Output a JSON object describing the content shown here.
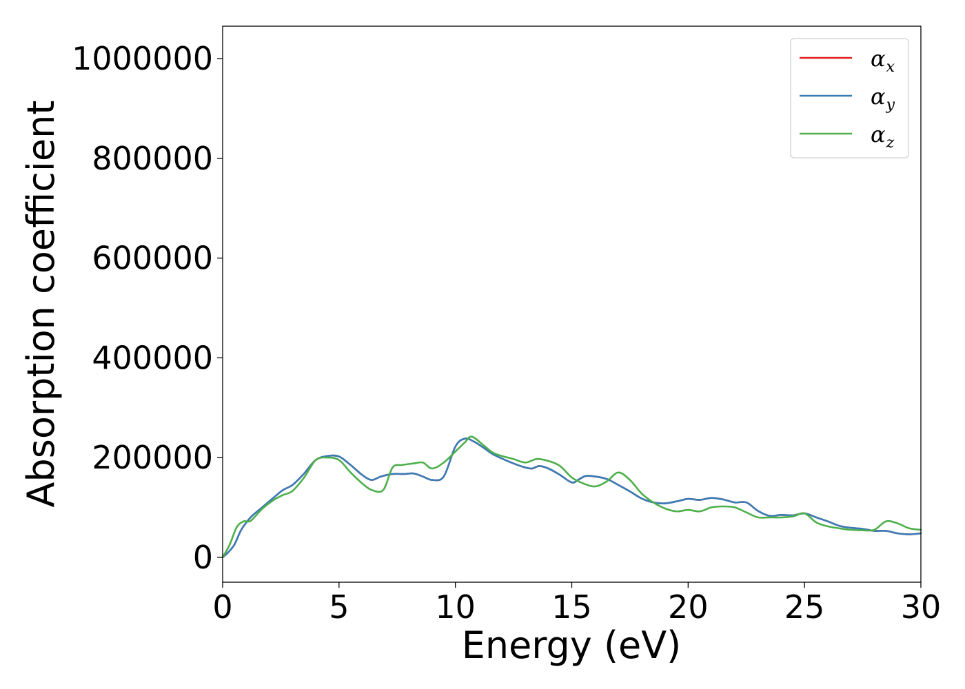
{
  "chart_data": {
    "type": "line",
    "xlabel": "Energy (eV)",
    "ylabel": "Absorption coefficient",
    "xlim": [
      0,
      30
    ],
    "ylim": [
      -50000,
      1065000
    ],
    "xticks": [
      0,
      5,
      10,
      15,
      20,
      25,
      30
    ],
    "xtick_labels": [
      "0",
      "5",
      "10",
      "15",
      "20",
      "25",
      "30"
    ],
    "yticks": [
      0,
      200000,
      400000,
      600000,
      800000,
      1000000
    ],
    "ytick_labels": [
      "0",
      "200000",
      "400000",
      "600000",
      "800000",
      "1000000"
    ],
    "grid": false,
    "legend_position": "top-right",
    "series": [
      {
        "name": "α",
        "subscript": "x",
        "color": "#e41a1c",
        "x": [
          0,
          0.2,
          0.5,
          0.8,
          1.2,
          1.7,
          2.2,
          2.6,
          3.0,
          3.5,
          4.0,
          4.5,
          5.0,
          5.5,
          6.0,
          6.4,
          6.8,
          7.3,
          7.8,
          8.2,
          8.6,
          9.0,
          9.5,
          10.0,
          10.4,
          10.8,
          11.2,
          11.6,
          12.0,
          12.5,
          13.0,
          13.3,
          13.6,
          14.0,
          14.5,
          15.0,
          15.3,
          15.6,
          16.0,
          16.5,
          17.0,
          17.5,
          18.0,
          18.5,
          19.0,
          19.5,
          20.0,
          20.5,
          21.0,
          21.5,
          22.0,
          22.5,
          23.0,
          23.5,
          24.0,
          24.5,
          25.0,
          25.5,
          26.0,
          26.5,
          27.0,
          27.5,
          28.0,
          28.5,
          29.0,
          29.5,
          30.0
        ],
        "y": [
          0,
          8000,
          25000,
          55000,
          80000,
          100000,
          120000,
          135000,
          145000,
          168000,
          195000,
          203000,
          202000,
          185000,
          165000,
          155000,
          162000,
          167000,
          167000,
          168000,
          162000,
          155000,
          162000,
          222000,
          238000,
          232000,
          220000,
          207000,
          198000,
          188000,
          180000,
          178000,
          183000,
          178000,
          165000,
          150000,
          156000,
          163000,
          162000,
          157000,
          145000,
          132000,
          118000,
          110000,
          108000,
          112000,
          117000,
          115000,
          119000,
          116000,
          110000,
          110000,
          93000,
          83000,
          85000,
          84000,
          88000,
          80000,
          72000,
          63000,
          59000,
          57000,
          53000,
          53000,
          48000,
          46000,
          48000
        ]
      },
      {
        "name": "α",
        "subscript": "y",
        "color": "#377eb8",
        "x": [
          0,
          0.2,
          0.5,
          0.8,
          1.2,
          1.7,
          2.2,
          2.6,
          3.0,
          3.5,
          4.0,
          4.5,
          5.0,
          5.5,
          6.0,
          6.4,
          6.8,
          7.3,
          7.8,
          8.2,
          8.6,
          9.0,
          9.5,
          10.0,
          10.4,
          10.8,
          11.2,
          11.6,
          12.0,
          12.5,
          13.0,
          13.3,
          13.6,
          14.0,
          14.5,
          15.0,
          15.3,
          15.6,
          16.0,
          16.5,
          17.0,
          17.5,
          18.0,
          18.5,
          19.0,
          19.5,
          20.0,
          20.5,
          21.0,
          21.5,
          22.0,
          22.5,
          23.0,
          23.5,
          24.0,
          24.5,
          25.0,
          25.5,
          26.0,
          26.5,
          27.0,
          27.5,
          28.0,
          28.5,
          29.0,
          29.5,
          30.0
        ],
        "y": [
          0,
          8000,
          25000,
          55000,
          80000,
          100000,
          120000,
          135000,
          145000,
          168000,
          195000,
          203000,
          202000,
          185000,
          165000,
          155000,
          162000,
          167000,
          167000,
          168000,
          162000,
          155000,
          162000,
          222000,
          238000,
          232000,
          220000,
          207000,
          198000,
          188000,
          180000,
          178000,
          183000,
          178000,
          165000,
          150000,
          156000,
          163000,
          162000,
          157000,
          145000,
          132000,
          118000,
          110000,
          108000,
          112000,
          117000,
          115000,
          119000,
          116000,
          110000,
          110000,
          93000,
          83000,
          85000,
          84000,
          88000,
          80000,
          72000,
          63000,
          59000,
          57000,
          53000,
          53000,
          48000,
          46000,
          48000
        ]
      },
      {
        "name": "α",
        "subscript": "z",
        "color": "#4daf4a",
        "x": [
          0,
          0.3,
          0.6,
          0.9,
          1.2,
          1.7,
          2.2,
          2.6,
          3.0,
          3.5,
          4.0,
          4.5,
          5.0,
          5.5,
          6.0,
          6.4,
          6.9,
          7.3,
          7.7,
          8.2,
          8.6,
          9.0,
          9.5,
          10.0,
          10.4,
          10.7,
          11.2,
          11.6,
          12.0,
          12.5,
          13.0,
          13.5,
          14.0,
          14.5,
          15.0,
          15.5,
          16.0,
          16.5,
          17.0,
          17.5,
          18.0,
          18.5,
          19.0,
          19.5,
          20.0,
          20.5,
          21.0,
          21.5,
          22.0,
          22.5,
          23.0,
          23.5,
          24.0,
          24.5,
          25.0,
          25.5,
          26.0,
          26.5,
          27.0,
          27.5,
          28.0,
          28.5,
          29.0,
          29.5,
          30.0
        ],
        "y": [
          0,
          25000,
          60000,
          72000,
          73000,
          97000,
          115000,
          125000,
          133000,
          160000,
          195000,
          200000,
          195000,
          170000,
          148000,
          135000,
          135000,
          180000,
          185000,
          188000,
          190000,
          178000,
          190000,
          212000,
          230000,
          242000,
          225000,
          210000,
          203000,
          197000,
          190000,
          197000,
          193000,
          183000,
          160000,
          148000,
          142000,
          152000,
          170000,
          155000,
          128000,
          110000,
          98000,
          92000,
          95000,
          92000,
          100000,
          102000,
          100000,
          90000,
          80000,
          80000,
          80000,
          82000,
          88000,
          70000,
          62000,
          58000,
          55000,
          54000,
          55000,
          72000,
          68000,
          58000,
          55000
        ]
      }
    ]
  }
}
